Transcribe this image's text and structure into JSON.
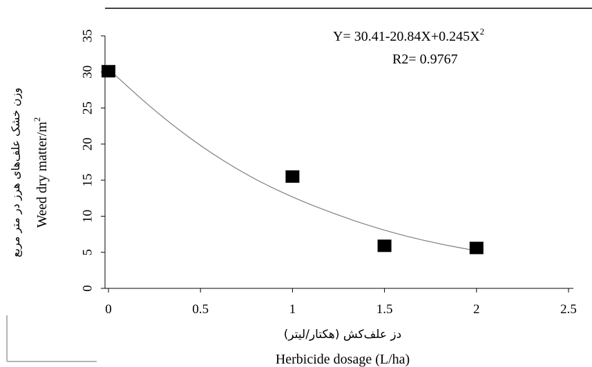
{
  "chart_data": {
    "type": "scatter",
    "points": [
      {
        "x": 0,
        "y": 30.1
      },
      {
        "x": 1,
        "y": 15.5
      },
      {
        "x": 1.5,
        "y": 5.9
      },
      {
        "x": 2,
        "y": 5.6
      }
    ],
    "trendline": {
      "a": 30.41,
      "b": -20.84,
      "c": 0.245,
      "type": "polynomial-fit"
    },
    "equation_label": "Y= 30.41-20.84X+0.245X",
    "equation_superscript": "2",
    "r2_label": "R2= 0.9767",
    "xlabel_fa": "دز علف‌کش (هکتار/لیتر)",
    "xlabel_en": "Herbicide dosage (L/ha)",
    "ylabel_fa": "وزن خشک علف‌های هرز در متر مربع",
    "ylabel_en": "Weed dry matter/m",
    "ylabel_superscript": "2",
    "xlim": [
      0,
      2.5
    ],
    "ylim": [
      0,
      35
    ],
    "x_ticks": [
      0,
      0.5,
      1,
      1.5,
      2,
      2.5
    ],
    "x_tick_labels": [
      "0",
      "0.5",
      "1",
      "1.5",
      "2",
      "2.5"
    ],
    "y_ticks": [
      0,
      5,
      10,
      15,
      20,
      25,
      30,
      35
    ],
    "y_tick_labels": [
      "0",
      "5",
      "10",
      "15",
      "20",
      "25",
      "30",
      "35"
    ],
    "grid": false,
    "legend": "none",
    "colors": {
      "marker": "#000000",
      "trendline": "#7f7f7f",
      "axis": "#000000",
      "frame": "#b3b3b3"
    }
  }
}
